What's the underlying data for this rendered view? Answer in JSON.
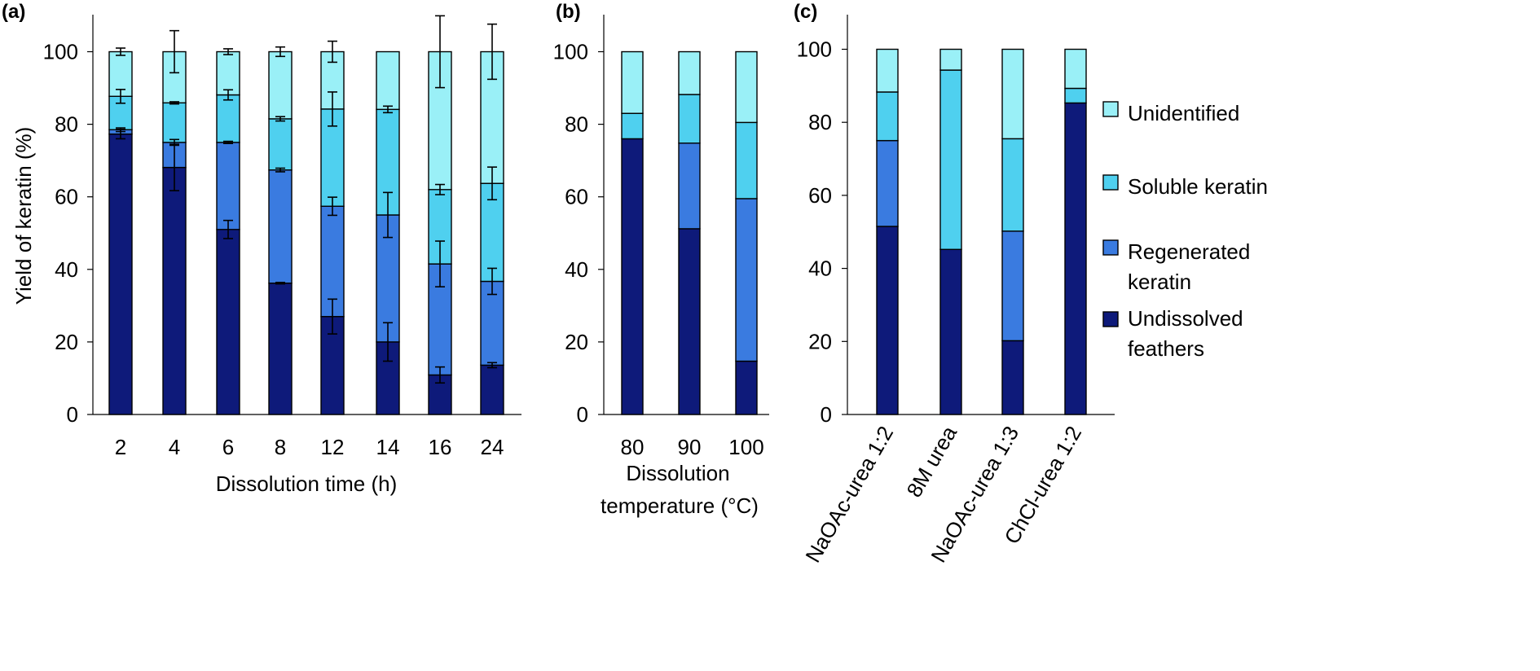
{
  "colors": {
    "Unidentified": "#9AF0F7",
    "Soluble keratin": "#4FD0EF",
    "Regenerated keratin": "#3A7BE0",
    "Undissolved feathers": "#0E1A7A",
    "outline": "#000000"
  },
  "legend": {
    "position": "right",
    "items": [
      {
        "key": "Unidentified",
        "lines": [
          "Unidentified"
        ]
      },
      {
        "key": "Soluble keratin",
        "lines": [
          "Soluble keratin"
        ]
      },
      {
        "key": "Regenerated keratin",
        "lines": [
          "Regenerated",
          "keratin"
        ]
      },
      {
        "key": "Undissolved feathers",
        "lines": [
          "Undissolved",
          "feathers"
        ]
      }
    ]
  },
  "chart_data": [
    {
      "panel": "(a)",
      "type": "bar",
      "stacked": true,
      "ylabel": "Yield of keratin (%)",
      "xlabel_lines": [
        "Dissolution time (h)"
      ],
      "ylim": [
        0,
        100
      ],
      "yticks": [
        0,
        20,
        40,
        60,
        80,
        100
      ],
      "categories": [
        "2",
        "4",
        "6",
        "8",
        "12",
        "14",
        "16",
        "24"
      ],
      "series": [
        {
          "name": "Undissolved feathers",
          "values": [
            77.3,
            68.1,
            51,
            36.2,
            27,
            20,
            10.9,
            13.6
          ],
          "errors": [
            1.3,
            6.4,
            2.5,
            0.2,
            4.8,
            5.3,
            2.2,
            0.7
          ]
        },
        {
          "name": "Regenerated keratin",
          "values": [
            1.2,
            6.9,
            24,
            31.2,
            30.4,
            35,
            30.6,
            23.1
          ],
          "errors": [
            0.5,
            0.8,
            0.3,
            0.5,
            2.5,
            6.2,
            6.3,
            3.6
          ]
        },
        {
          "name": "Soluble keratin",
          "values": [
            9.2,
            10.9,
            13.1,
            14.1,
            26.8,
            29.1,
            20.5,
            27
          ],
          "errors": [
            1.9,
            0.3,
            1.4,
            0.6,
            4.7,
            0.9,
            1.4,
            4.5
          ]
        },
        {
          "name": "Unidentified",
          "values": [
            12.3,
            14.1,
            11.9,
            18.5,
            15.8,
            15.9,
            38,
            36.3
          ],
          "errors": [
            1.0,
            5.8,
            0.8,
            1.3,
            2.9,
            0,
            9.9,
            7.6
          ]
        }
      ]
    },
    {
      "panel": "(b)",
      "type": "bar",
      "stacked": true,
      "xlabel_lines": [
        "Dissolution",
        "temperature (°C)"
      ],
      "ylim": [
        0,
        100
      ],
      "yticks": [
        0,
        20,
        40,
        60,
        80,
        100
      ],
      "categories": [
        "80",
        "90",
        "100"
      ],
      "series": [
        {
          "name": "Undissolved feathers",
          "values": [
            76,
            51.2,
            14.7
          ]
        },
        {
          "name": "Regenerated keratin",
          "values": [
            0,
            23.6,
            44.8
          ]
        },
        {
          "name": "Soluble keratin",
          "values": [
            7,
            13.4,
            21
          ]
        },
        {
          "name": "Unidentified",
          "values": [
            17,
            11.8,
            19.5
          ]
        }
      ]
    },
    {
      "panel": "(c)",
      "type": "bar",
      "stacked": true,
      "ylim": [
        0,
        100
      ],
      "yticks": [
        0,
        20,
        40,
        60,
        80,
        100
      ],
      "categories": [
        "NaOAc-urea 1:2",
        "8M urea",
        "NaOAc-urea 1:3",
        "ChCl-urea 1:2"
      ],
      "series": [
        {
          "name": "Undissolved feathers",
          "values": [
            51.5,
            45.2,
            20.2,
            85.3
          ]
        },
        {
          "name": "Regenerated keratin",
          "values": [
            23.5,
            0,
            30,
            0
          ]
        },
        {
          "name": "Soluble keratin",
          "values": [
            13.3,
            49.1,
            25.3,
            4
          ]
        },
        {
          "name": "Unidentified",
          "values": [
            11.7,
            5.7,
            24.5,
            10.7
          ]
        }
      ]
    }
  ]
}
